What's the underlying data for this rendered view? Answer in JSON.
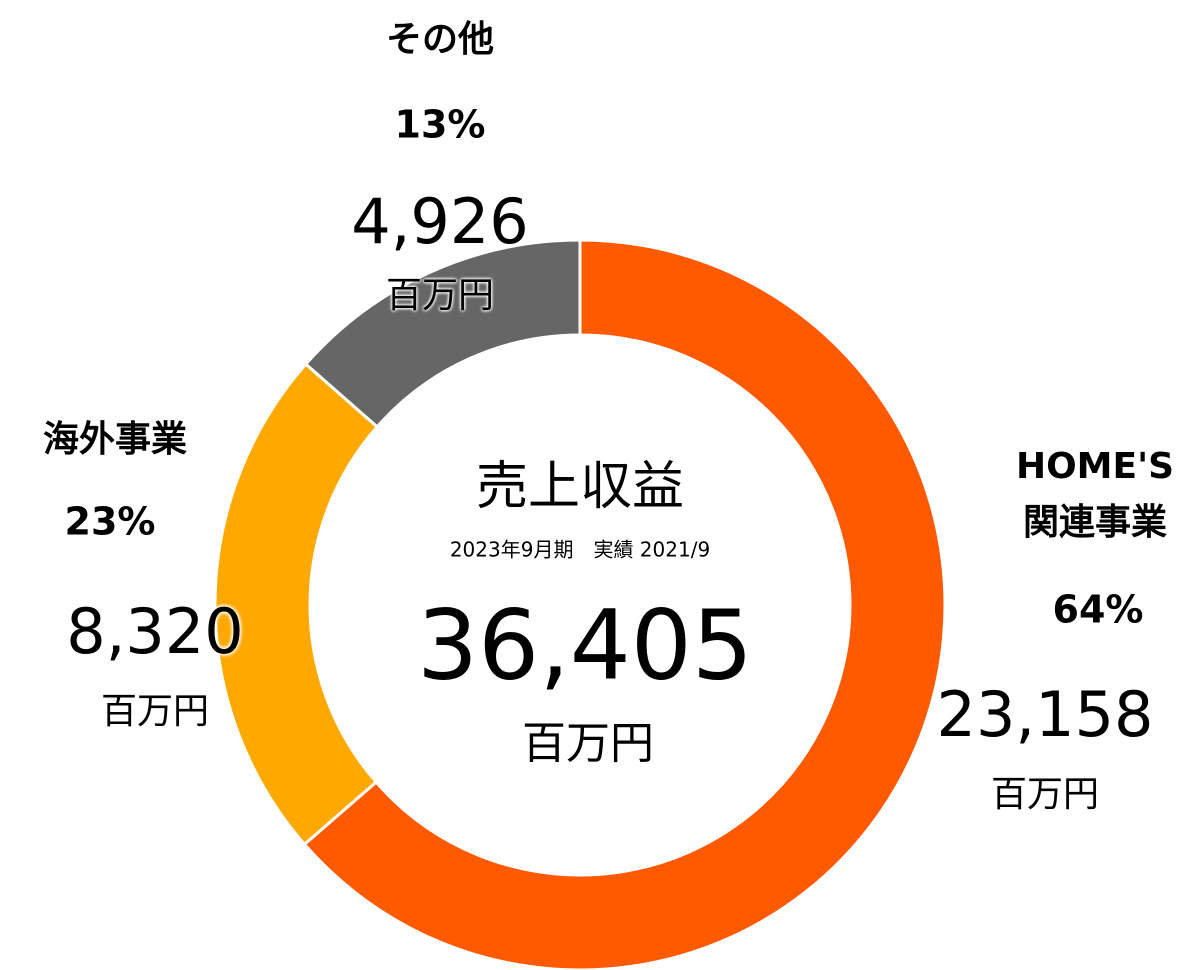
{
  "chart_data": {
    "type": "donut",
    "title": "売上収益",
    "subtitle": "2023年9月期　実績 2021/9",
    "total": 36405,
    "total_label": "36,405",
    "unit": "百万円",
    "categories": [
      "HOME'S 関連事業",
      "海外事業",
      "その他"
    ],
    "values": [
      23158,
      8320,
      4926
    ],
    "value_labels": [
      "23,158",
      "8,320",
      "4,926"
    ],
    "percents": [
      64,
      23,
      13
    ],
    "percent_labels": [
      "64%",
      "23%",
      "13%"
    ],
    "colors": [
      "#ff5a00",
      "#ffa800",
      "#666666"
    ]
  }
}
